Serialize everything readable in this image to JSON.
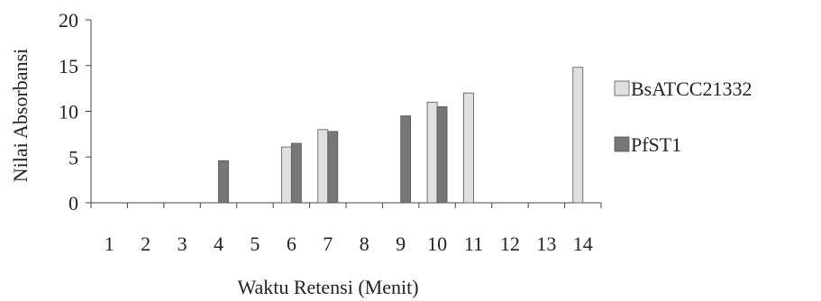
{
  "chart_data": {
    "type": "bar",
    "title": "",
    "xlabel": "Waktu Retensi (Menit)",
    "ylabel": "Nilai Absorbansi",
    "ylim": [
      0,
      20
    ],
    "yticks": [
      0,
      5,
      10,
      15,
      20
    ],
    "categories": [
      "1",
      "2",
      "3",
      "4",
      "5",
      "6",
      "7",
      "8",
      "9",
      "10",
      "11",
      "12",
      "13",
      "14"
    ],
    "series": [
      {
        "name": "BsATCC21332",
        "color": "#e0e0e0",
        "values": [
          null,
          null,
          null,
          null,
          null,
          6.1,
          8.0,
          null,
          null,
          11.0,
          12.0,
          null,
          null,
          14.8
        ]
      },
      {
        "name": "PfST1",
        "color": "#777777",
        "values": [
          null,
          null,
          null,
          4.6,
          null,
          6.5,
          7.8,
          null,
          9.5,
          10.5,
          null,
          null,
          null,
          null
        ]
      }
    ],
    "legend_position": "right",
    "grid": false
  }
}
